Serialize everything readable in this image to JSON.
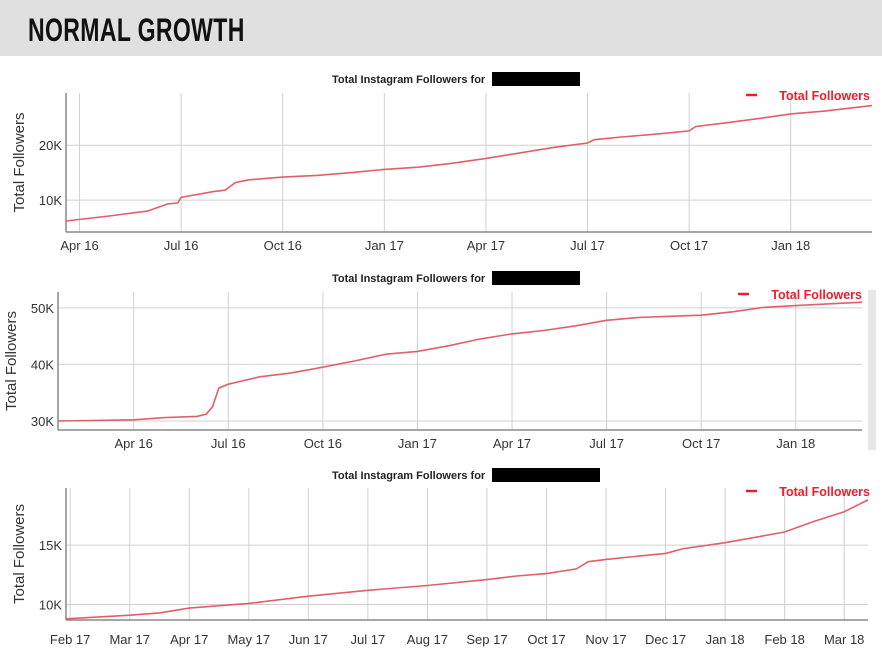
{
  "header": {
    "title": "NORMAL GROWTH"
  },
  "colors": {
    "line": "#e0606a",
    "legend": "#e8202e",
    "grid": "#d0d0d0",
    "redaction": "#000000"
  },
  "chart_data": [
    {
      "type": "line",
      "title": "Total Instagram Followers for",
      "ylabel": "Total Followers",
      "legend": "Total Followers",
      "legend_position": "top-right",
      "x_unit": "months since Apr 2016",
      "x_ticks": [
        {
          "x": 0,
          "label": "Apr 16"
        },
        {
          "x": 3,
          "label": "Jul 16"
        },
        {
          "x": 6,
          "label": "Oct 16"
        },
        {
          "x": 9,
          "label": "Jan 17"
        },
        {
          "x": 12,
          "label": "Apr 17"
        },
        {
          "x": 15,
          "label": "Jul 17"
        },
        {
          "x": 18,
          "label": "Oct 17"
        },
        {
          "x": 21,
          "label": "Jan 18"
        }
      ],
      "y_ticks": [
        {
          "y": 10,
          "label": "10K"
        },
        {
          "y": 20,
          "label": "20K"
        }
      ],
      "xlim": [
        -0.4,
        23.4
      ],
      "ylim": [
        4.2,
        29.5
      ],
      "y_unit": "thousands",
      "points": [
        [
          -0.4,
          6.2
        ],
        [
          1,
          7.2
        ],
        [
          2,
          8
        ],
        [
          2.6,
          9.3
        ],
        [
          2.9,
          9.5
        ],
        [
          3,
          10.5
        ],
        [
          4,
          11.6
        ],
        [
          4.3,
          11.8
        ],
        [
          4.6,
          13.2
        ],
        [
          5,
          13.7
        ],
        [
          6,
          14.2
        ],
        [
          7,
          14.5
        ],
        [
          8,
          15
        ],
        [
          9,
          15.6
        ],
        [
          10,
          16
        ],
        [
          11,
          16.7
        ],
        [
          12,
          17.6
        ],
        [
          13,
          18.6
        ],
        [
          14,
          19.6
        ],
        [
          15,
          20.4
        ],
        [
          15.2,
          21
        ],
        [
          16,
          21.5
        ],
        [
          17,
          22
        ],
        [
          18,
          22.6
        ],
        [
          18.2,
          23.4
        ],
        [
          19,
          24
        ],
        [
          20,
          24.8
        ],
        [
          21,
          25.7
        ],
        [
          22,
          26.2
        ],
        [
          23.4,
          27.2
        ]
      ]
    },
    {
      "type": "line",
      "title": "Total Instagram Followers for",
      "ylabel": "Total Followers",
      "legend": "Total Followers",
      "legend_position": "top-right",
      "x_unit": "months since Apr 2016",
      "x_ticks": [
        {
          "x": 0,
          "label": "Apr 16"
        },
        {
          "x": 3,
          "label": "Jul 16"
        },
        {
          "x": 6,
          "label": "Oct 16"
        },
        {
          "x": 9,
          "label": "Jan 17"
        },
        {
          "x": 12,
          "label": "Apr 17"
        },
        {
          "x": 15,
          "label": "Jul 17"
        },
        {
          "x": 18,
          "label": "Oct 17"
        },
        {
          "x": 21,
          "label": "Jan 18"
        }
      ],
      "y_ticks": [
        {
          "y": 30,
          "label": "30K"
        },
        {
          "y": 40,
          "label": "40K"
        },
        {
          "y": 50,
          "label": "50K"
        }
      ],
      "xlim": [
        -2.4,
        23.1
      ],
      "ylim": [
        28.4,
        52.8
      ],
      "y_unit": "thousands",
      "points": [
        [
          -2.4,
          30
        ],
        [
          0,
          30.2
        ],
        [
          1,
          30.6
        ],
        [
          2,
          30.8
        ],
        [
          2.3,
          31.2
        ],
        [
          2.5,
          32.5
        ],
        [
          2.7,
          35.8
        ],
        [
          3,
          36.5
        ],
        [
          4,
          37.8
        ],
        [
          5,
          38.5
        ],
        [
          6,
          39.5
        ],
        [
          7,
          40.6
        ],
        [
          8,
          41.8
        ],
        [
          9,
          42.3
        ],
        [
          10,
          43.3
        ],
        [
          11,
          44.5
        ],
        [
          12,
          45.4
        ],
        [
          13,
          46
        ],
        [
          14,
          46.8
        ],
        [
          15,
          47.8
        ],
        [
          16,
          48.3
        ],
        [
          17,
          48.5
        ],
        [
          18,
          48.7
        ],
        [
          19,
          49.3
        ],
        [
          20,
          50.1
        ],
        [
          21,
          50.4
        ],
        [
          22,
          50.7
        ],
        [
          23.1,
          51
        ]
      ]
    },
    {
      "type": "line",
      "title": "Total Instagram Followers for",
      "ylabel": "Total Followers",
      "legend": "Total Followers",
      "legend_position": "top-right",
      "x_unit": "months since Feb 2017",
      "x_ticks": [
        {
          "x": 0,
          "label": "Feb 17"
        },
        {
          "x": 1,
          "label": "Mar 17"
        },
        {
          "x": 2,
          "label": "Apr 17"
        },
        {
          "x": 3,
          "label": "May 17"
        },
        {
          "x": 4,
          "label": "Jun 17"
        },
        {
          "x": 5,
          "label": "Jul 17"
        },
        {
          "x": 6,
          "label": "Aug 17"
        },
        {
          "x": 7,
          "label": "Sep 17"
        },
        {
          "x": 8,
          "label": "Oct 17"
        },
        {
          "x": 9,
          "label": "Nov 17"
        },
        {
          "x": 10,
          "label": "Dec 17"
        },
        {
          "x": 11,
          "label": "Jan 18"
        },
        {
          "x": 12,
          "label": "Feb 18"
        },
        {
          "x": 13,
          "label": "Mar 18"
        }
      ],
      "y_ticks": [
        {
          "y": 10,
          "label": "10K"
        },
        {
          "y": 15,
          "label": "15K"
        }
      ],
      "xlim": [
        -0.07,
        13.4
      ],
      "ylim": [
        8.7,
        19.8
      ],
      "y_unit": "thousands",
      "points": [
        [
          -0.07,
          8.8
        ],
        [
          1,
          9.1
        ],
        [
          1.5,
          9.3
        ],
        [
          2,
          9.7
        ],
        [
          3,
          10.1
        ],
        [
          4,
          10.7
        ],
        [
          5,
          11.2
        ],
        [
          6,
          11.6
        ],
        [
          7,
          12.1
        ],
        [
          7.5,
          12.4
        ],
        [
          8,
          12.6
        ],
        [
          8.5,
          13
        ],
        [
          8.7,
          13.6
        ],
        [
          9,
          13.8
        ],
        [
          10,
          14.3
        ],
        [
          10.3,
          14.7
        ],
        [
          11,
          15.2
        ],
        [
          12,
          16.1
        ],
        [
          12.5,
          17
        ],
        [
          13,
          17.8
        ],
        [
          13.4,
          18.8
        ]
      ]
    }
  ]
}
